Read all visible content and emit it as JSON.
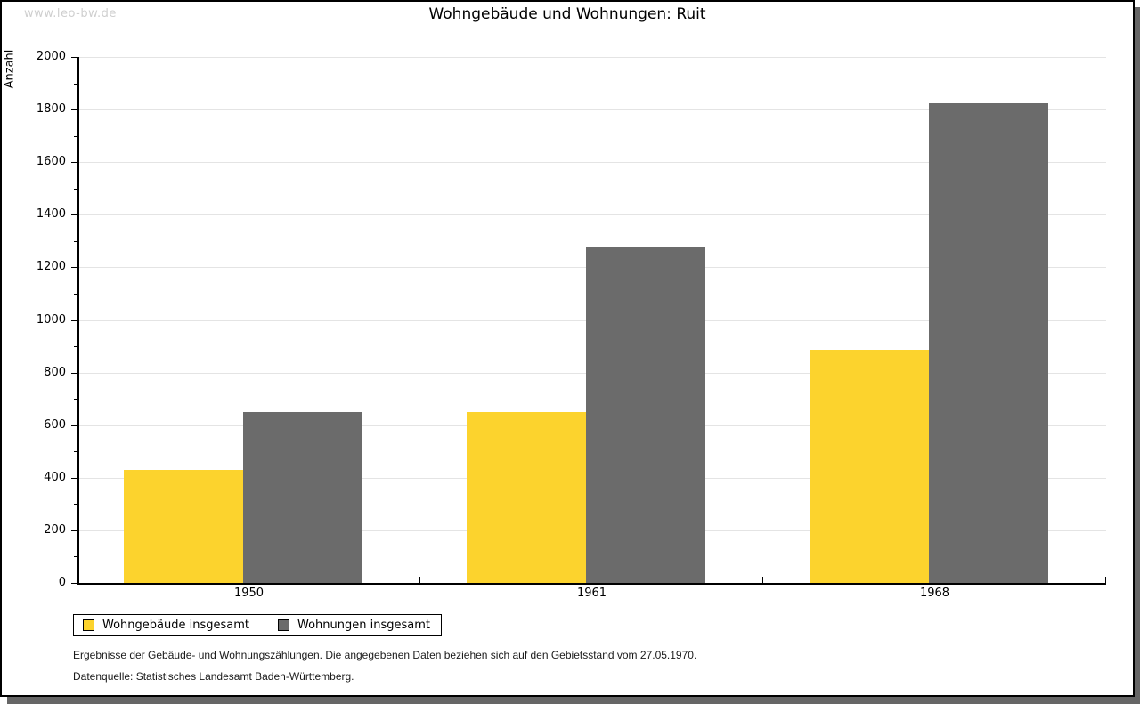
{
  "watermark": "www.leo-bw.de",
  "header": {
    "title": "Wohngebäude und Wohnungen: Ruit"
  },
  "chart_data": {
    "type": "bar",
    "title": "Wohngebäude und Wohnungen: Ruit",
    "categories": [
      "1950",
      "1961",
      "1968"
    ],
    "series": [
      {
        "name": "Wohngebäude insgesamt",
        "color": "#FCD32D",
        "values": [
          430,
          650,
          885
        ]
      },
      {
        "name": "Wohnungen insgesamt",
        "color": "#6B6B6B",
        "values": [
          650,
          1280,
          1825
        ]
      }
    ],
    "xlabel": "",
    "ylabel": "Anzahl",
    "ylim": [
      0,
      2000
    ],
    "ytick_step": 200,
    "yminor_step": 100,
    "grid": "horizontal-major",
    "gridline_color": "#e4e4e4",
    "legend_position": "bottom-left",
    "legend_entries": [
      "Wohngebäude insgesamt",
      "Wohnungen insgesamt"
    ]
  },
  "footnotes": {
    "line1": "Ergebnisse der Gebäude- und Wohnungszählungen. Die angegebenen Daten beziehen sich auf den Gebietsstand vom 27.05.1970.",
    "line2": "Datenquelle: Statistisches Landesamt Baden-Württemberg."
  },
  "colors": {
    "frame_border": "#000000",
    "frame_shadow": "#666666",
    "watermark_text": "#cfcfcf",
    "bar_yellow": "#FCD32D",
    "bar_gray": "#6B6B6B"
  }
}
